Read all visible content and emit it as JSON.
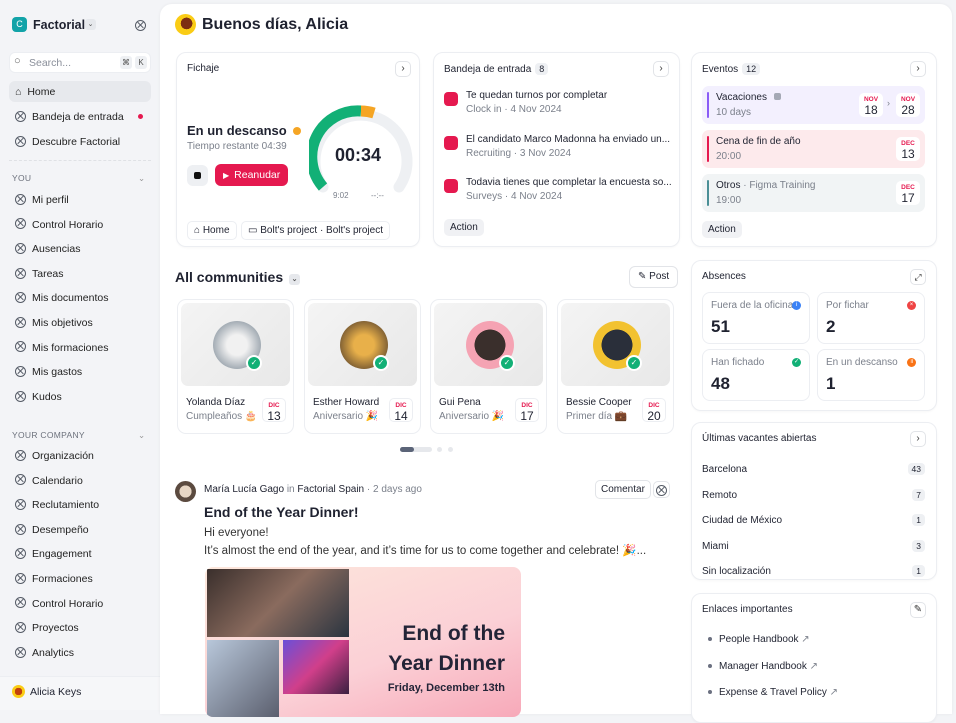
{
  "sidebar": {
    "company": "Factorial",
    "logo_letter": "C",
    "search_placeholder": "Search...",
    "kbd": [
      "⌘",
      "K"
    ],
    "top": [
      {
        "label": "Home"
      },
      {
        "label": "Bandeja de entrada"
      },
      {
        "label": "Descubre Factorial"
      }
    ],
    "you_label": "YOU",
    "you": [
      "Mi perfil",
      "Control Horario",
      "Ausencias",
      "Tareas",
      "Mis documentos",
      "Mis objetivos",
      "Mis formaciones",
      "Mis gastos",
      "Kudos"
    ],
    "company_label": "YOUR COMPANY",
    "company_items": [
      "Organización",
      "Calendario",
      "Reclutamiento",
      "Desempeño",
      "Engagement",
      "Formaciones",
      "Control Horario",
      "Proyectos",
      "Analytics"
    ],
    "user": "Alicia Keys"
  },
  "header": {
    "greeting": "Buenos días, Alicia"
  },
  "fichaje": {
    "title": "Fichaje",
    "status": "En un descanso",
    "remaining": "Tiempo restante 04:39",
    "timer": "00:34",
    "start": "9:02",
    "end": "--:--",
    "resume": "Reanudar",
    "chips": [
      "Home",
      "Bolt's project · Bolt's project"
    ]
  },
  "inbox": {
    "title": "Bandeja de entrada",
    "count": "8",
    "items": [
      {
        "title": "Te quedan turnos por completar",
        "sub": "Clock in · 4 Nov 2024"
      },
      {
        "title": "El candidato Marco Madonna ha enviado un...",
        "sub": "Recruiting · 3 Nov 2024"
      },
      {
        "title": "Todavia tienes que completar la encuesta so...",
        "sub": "Surveys · 4 Nov 2024"
      }
    ],
    "action": "Action"
  },
  "events": {
    "title": "Eventos",
    "count": "12",
    "items": [
      {
        "title": "Vacaciones",
        "sub": "10 days",
        "from": {
          "m": "NOV",
          "d": "18"
        },
        "to": {
          "m": "NOV",
          "d": "28"
        },
        "color": "#8b5cf6"
      },
      {
        "title": "Cena de fin de año",
        "sub": "20:00",
        "date": {
          "m": "DEC",
          "d": "13"
        },
        "color": "#e5194f"
      },
      {
        "title": "Otros",
        "extra": "· Figma Training",
        "sub": "19:00",
        "date": {
          "m": "DEC",
          "d": "17"
        },
        "color": "#4b8f96"
      }
    ],
    "action": "Action"
  },
  "communities": {
    "title": "All communities",
    "post": "Post",
    "people": [
      {
        "name": "Yolanda Díaz",
        "sub": "Cumpleaños 🎂",
        "m": "DIC",
        "d": "13"
      },
      {
        "name": "Esther Howard",
        "sub": "Aniversario 🎉",
        "m": "DIC",
        "d": "14"
      },
      {
        "name": "Gui Pena",
        "sub": "Aniversario 🎉",
        "m": "DIC",
        "d": "17"
      },
      {
        "name": "Bessie Cooper",
        "sub": "Primer día 💼",
        "m": "DIC",
        "d": "20"
      }
    ]
  },
  "post": {
    "author": "María Lucía Gago",
    "in": "in",
    "group": "Factorial Spain",
    "time": "· 2 days ago",
    "comment": "Comentar",
    "title": "End of the Year Dinner!",
    "line1": "Hi everyone!",
    "line2": "It’s almost the end of the year, and it’s time for us to come together and celebrate! 🎉...",
    "banner_title1": "End of the",
    "banner_title2": "Year Dinner",
    "banner_date": "Friday, December 13th"
  },
  "absences": {
    "title": "Absences",
    "stats": [
      {
        "label": "Fuera de la oficina",
        "value": "51",
        "color": "#3b82f6"
      },
      {
        "label": "Por fichar",
        "value": "2",
        "color": "#ef4444"
      },
      {
        "label": "Han fichado",
        "value": "48",
        "color": "#12b076"
      },
      {
        "label": "En un descanso",
        "value": "1",
        "color": "#f97316"
      }
    ]
  },
  "vacancies": {
    "title": "Últimas vacantes abiertas",
    "items": [
      {
        "city": "Barcelona",
        "n": "43"
      },
      {
        "city": "Remoto",
        "n": "7"
      },
      {
        "city": "Ciudad de México",
        "n": "1"
      },
      {
        "city": "Miami",
        "n": "3"
      },
      {
        "city": "Sin localización",
        "n": "1"
      }
    ]
  },
  "links": {
    "title": "Enlaces importantes",
    "items": [
      "People Handbook",
      "Manager Handbook",
      "Expense & Travel Policy"
    ]
  }
}
